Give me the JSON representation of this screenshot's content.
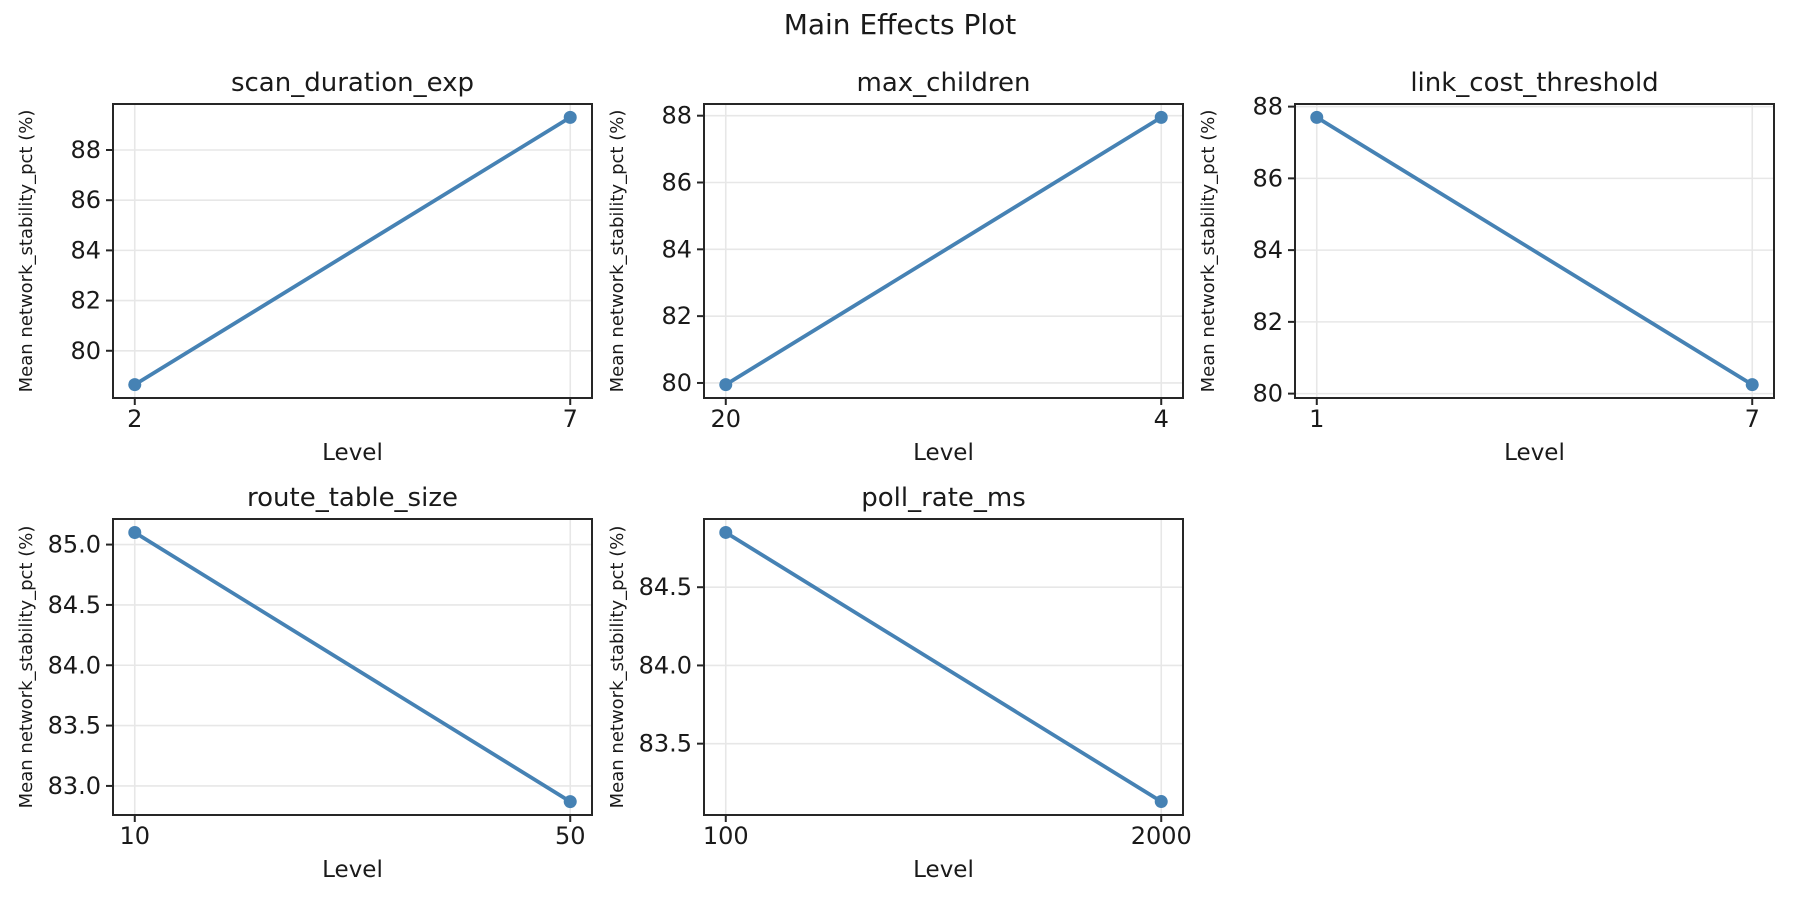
{
  "figure": {
    "suptitle": "Main Effects Plot",
    "background": "#ffffff"
  },
  "styles": {
    "line_color": "#4682B4",
    "grid_color": "#e7e7e7",
    "spine_color": "#262626",
    "tick_color": "#262626",
    "text_color": "#1a1a1a"
  },
  "chart_data": [
    {
      "type": "line",
      "title": "scan_duration_exp",
      "xlabel": "Level",
      "ylabel": "Mean network_stability_pct (%)",
      "categories": [
        "2",
        "7"
      ],
      "values": [
        78.65,
        89.3
      ],
      "yticks": [
        80,
        82,
        84,
        86,
        88
      ],
      "ytick_labels": [
        "80",
        "82",
        "84",
        "86",
        "88"
      ],
      "ylim": [
        78.118,
        89.833
      ],
      "grid": true,
      "legend": null
    },
    {
      "type": "line",
      "title": "max_children",
      "xlabel": "Level",
      "ylabel": "Mean network_stability_pct (%)",
      "categories": [
        "20",
        "4"
      ],
      "values": [
        79.95,
        87.95
      ],
      "yticks": [
        80,
        82,
        84,
        86,
        88
      ],
      "ytick_labels": [
        "80",
        "82",
        "84",
        "86",
        "88"
      ],
      "ylim": [
        79.55,
        88.35
      ],
      "grid": true,
      "legend": null
    },
    {
      "type": "line",
      "title": "link_cost_threshold",
      "xlabel": "Level",
      "ylabel": "Mean network_stability_pct (%)",
      "categories": [
        "1",
        "7"
      ],
      "values": [
        87.7,
        80.25
      ],
      "yticks": [
        80,
        82,
        84,
        86,
        88
      ],
      "ytick_labels": [
        "80",
        "82",
        "84",
        "86",
        "88"
      ],
      "ylim": [
        79.878,
        88.073
      ],
      "grid": true,
      "legend": null
    },
    {
      "type": "line",
      "title": "route_table_size",
      "xlabel": "Level",
      "ylabel": "Mean network_stability_pct (%)",
      "categories": [
        "10",
        "50"
      ],
      "values": [
        85.1,
        82.87
      ],
      "yticks": [
        83.0,
        83.5,
        84.0,
        84.5,
        85.0
      ],
      "ytick_labels": [
        "83.0",
        "83.5",
        "84.0",
        "84.5",
        "85.0"
      ],
      "ylim": [
        82.759,
        85.212
      ],
      "grid": true,
      "legend": null
    },
    {
      "type": "line",
      "title": "poll_rate_ms",
      "xlabel": "Level",
      "ylabel": "Mean network_stability_pct (%)",
      "categories": [
        "100",
        "2000"
      ],
      "values": [
        84.85,
        83.13
      ],
      "yticks": [
        83.5,
        84.0,
        84.5
      ],
      "ytick_labels": [
        "83.5",
        "84.0",
        "84.5"
      ],
      "ylim": [
        83.044,
        84.936
      ],
      "grid": true,
      "legend": null
    }
  ]
}
